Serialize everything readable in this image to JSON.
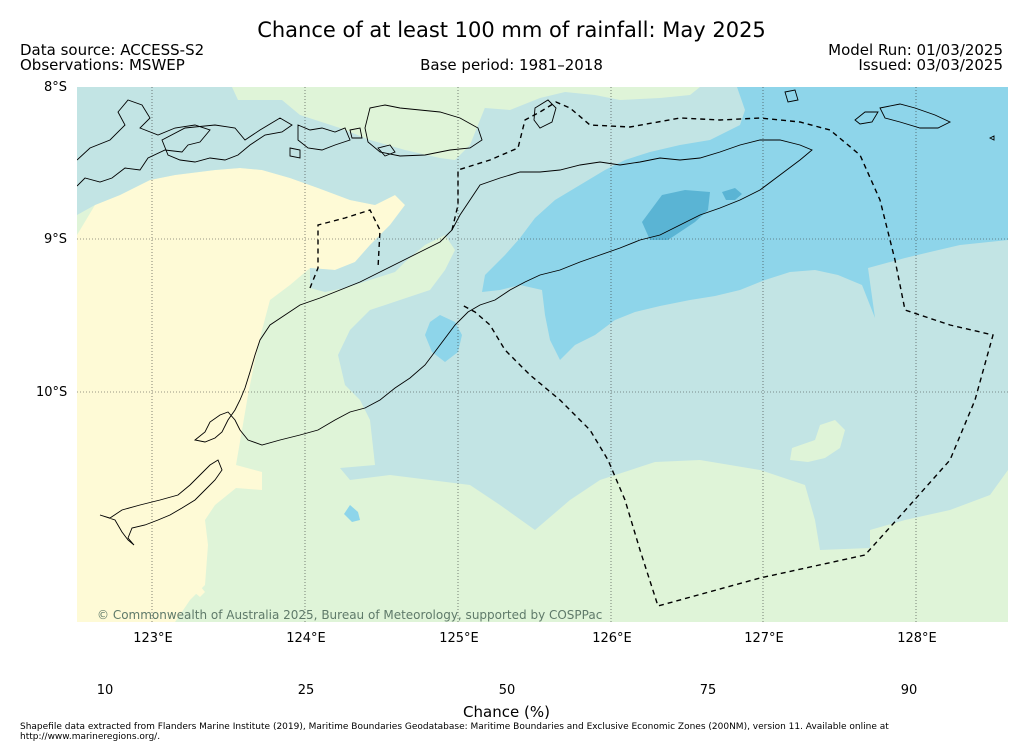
{
  "header": {
    "title": "Chance of at least 100 mm of rainfall: May 2025",
    "data_source": "Data source: ACCESS-S2",
    "observations": "Observations: MSWEP",
    "base_period": "Base period: 1981–2018",
    "model_run": "Model Run: 01/03/2025",
    "issued": "Issued: 03/03/2025"
  },
  "map": {
    "lat_labels": [
      "8°S",
      "9°S",
      "10°S"
    ],
    "lon_labels": [
      "123°E",
      "124°E",
      "125°E",
      "126°E",
      "127°E",
      "128°E"
    ],
    "copyright": "© Commonwealth of Australia 2025, Bureau of Meteorology, supported by COSPPac",
    "colors": {
      "below_10": "#fefad6",
      "c10_25": "#dff4d8",
      "c25_50": "#c2e4e4",
      "c50_75": "#8ed5ea",
      "c75_90": "#5ab4d4",
      "above_90": "#0e9cc6"
    }
  },
  "colorbar": {
    "ticks": [
      "10",
      "25",
      "50",
      "75",
      "90"
    ],
    "label": "Chance (%)"
  },
  "footer": {
    "note": "Shapefile data extracted from Flanders Marine Institute (2019), Maritime Boundaries Geodatabase: Maritime Boundaries and Exclusive Economic Zones (200NM), version 11. Available online at http://www.marineregions.org/."
  }
}
